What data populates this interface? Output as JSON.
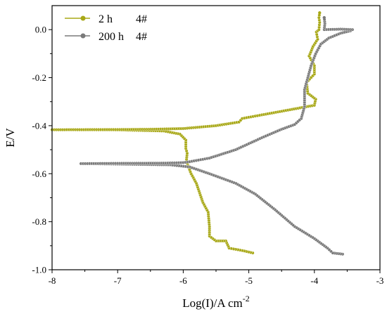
{
  "chart_data": {
    "type": "line",
    "title": "",
    "xlabel": "Log(I)/A cm",
    "xlabel_superscript": "-2",
    "ylabel": "E/V",
    "xlim": [
      -8,
      -3
    ],
    "ylim": [
      -1.0,
      0.1
    ],
    "xticks": [
      "-8",
      "-7",
      "-6",
      "-5",
      "-4",
      "-3"
    ],
    "yticks": [
      "-1.0",
      "-0.8",
      "-0.6",
      "-0.4",
      "-0.2",
      "0.0"
    ],
    "grid": false,
    "legend_position": "top-left",
    "series": [
      {
        "name": "2 h",
        "sample": "4#",
        "color": "#a8a817",
        "points": [
          [
            -4.94,
            -0.93
          ],
          [
            -5.1,
            -0.92
          ],
          [
            -5.3,
            -0.91
          ],
          [
            -5.35,
            -0.88
          ],
          [
            -5.5,
            -0.88
          ],
          [
            -5.6,
            -0.86
          ],
          [
            -5.6,
            -0.82
          ],
          [
            -5.62,
            -0.76
          ],
          [
            -5.7,
            -0.72
          ],
          [
            -5.75,
            -0.68
          ],
          [
            -5.8,
            -0.64
          ],
          [
            -5.88,
            -0.6
          ],
          [
            -5.93,
            -0.565
          ],
          [
            -5.95,
            -0.54
          ],
          [
            -5.94,
            -0.515
          ],
          [
            -5.96,
            -0.495
          ],
          [
            -5.96,
            -0.46
          ],
          [
            -6.05,
            -0.435
          ],
          [
            -6.3,
            -0.422
          ],
          [
            -7.0,
            -0.418
          ],
          [
            -8.0,
            -0.417
          ],
          [
            -7.0,
            -0.416
          ],
          [
            -6.5,
            -0.415
          ],
          [
            -6.0,
            -0.412
          ],
          [
            -5.5,
            -0.4
          ],
          [
            -5.15,
            -0.385
          ],
          [
            -5.1,
            -0.37
          ],
          [
            -4.8,
            -0.355
          ],
          [
            -4.4,
            -0.335
          ],
          [
            -4.0,
            -0.315
          ],
          [
            -3.98,
            -0.29
          ],
          [
            -4.05,
            -0.275
          ],
          [
            -4.1,
            -0.265
          ],
          [
            -4.12,
            -0.22
          ],
          [
            -4.0,
            -0.185
          ],
          [
            -4.0,
            -0.15
          ],
          [
            -4.08,
            -0.11
          ],
          [
            -4.02,
            -0.07
          ],
          [
            -3.95,
            -0.04
          ],
          [
            -3.97,
            -0.01
          ],
          [
            -3.93,
            0.0
          ],
          [
            -3.92,
            0.03
          ],
          [
            -3.93,
            0.05
          ],
          [
            -3.92,
            0.07
          ]
        ]
      },
      {
        "name": "200 h",
        "sample": "4#",
        "color": "#7a7a7a",
        "points": [
          [
            -3.57,
            -0.935
          ],
          [
            -3.72,
            -0.93
          ],
          [
            -3.8,
            -0.91
          ],
          [
            -4.0,
            -0.87
          ],
          [
            -4.3,
            -0.82
          ],
          [
            -4.6,
            -0.75
          ],
          [
            -4.9,
            -0.685
          ],
          [
            -5.2,
            -0.64
          ],
          [
            -5.6,
            -0.6
          ],
          [
            -5.9,
            -0.572
          ],
          [
            -6.2,
            -0.563
          ],
          [
            -7.0,
            -0.56
          ],
          [
            -7.56,
            -0.558
          ],
          [
            -7.0,
            -0.557
          ],
          [
            -6.3,
            -0.556
          ],
          [
            -6.0,
            -0.554
          ],
          [
            -5.9,
            -0.55
          ],
          [
            -5.6,
            -0.535
          ],
          [
            -5.2,
            -0.5
          ],
          [
            -4.8,
            -0.45
          ],
          [
            -4.5,
            -0.415
          ],
          [
            -4.3,
            -0.395
          ],
          [
            -4.2,
            -0.37
          ],
          [
            -4.15,
            -0.32
          ],
          [
            -4.15,
            -0.25
          ],
          [
            -4.1,
            -0.2
          ],
          [
            -4.05,
            -0.15
          ],
          [
            -3.98,
            -0.1
          ],
          [
            -3.9,
            -0.06
          ],
          [
            -3.78,
            -0.035
          ],
          [
            -3.6,
            -0.015
          ],
          [
            -3.45,
            -0.005
          ],
          [
            -3.42,
            0.0
          ],
          [
            -3.6,
            0.002
          ],
          [
            -3.85,
            0.0
          ],
          [
            -3.84,
            0.025
          ],
          [
            -3.85,
            0.05
          ]
        ]
      }
    ]
  }
}
